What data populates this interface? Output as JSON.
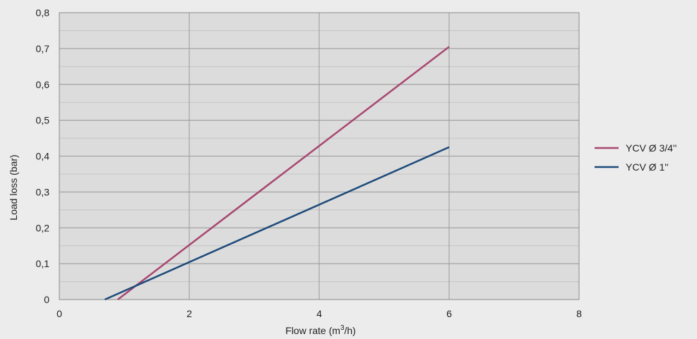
{
  "chart_data": {
    "type": "line",
    "xlabel": "Flow rate (m",
    "xlabel_sup": "3",
    "xlabel_tail": "/h)",
    "ylabel": "Load loss (bar)",
    "xlim": [
      0,
      8
    ],
    "ylim": [
      0,
      0.8
    ],
    "x_ticks": [
      0,
      2,
      4,
      6,
      8
    ],
    "x_tick_labels": [
      "0",
      "2",
      "4",
      "6",
      "8"
    ],
    "y_ticks": [
      0,
      0.1,
      0.2,
      0.3,
      0.4,
      0.5,
      0.6,
      0.7,
      0.8
    ],
    "y_tick_labels": [
      "0",
      "0,1",
      "0,2",
      "0,3",
      "0,4",
      "0,5",
      "0,6",
      "0,7",
      "0,8"
    ],
    "y_minor_step": 0.05,
    "grid": true,
    "legend_position": "right",
    "series": [
      {
        "name": "YCV Ø 3/4''",
        "color": "#a8466f",
        "x": [
          0.9,
          6
        ],
        "y": [
          0,
          0.705
        ]
      },
      {
        "name": "YCV Ø 1''",
        "color": "#1c4a7a",
        "x": [
          0.7,
          6
        ],
        "y": [
          0,
          0.425
        ]
      }
    ]
  },
  "colors": {
    "plot_background": "#dcdcdc",
    "major_grid": "#9a9a9a",
    "minor_grid": "#c4c4c4",
    "border": "#8a8a8a"
  }
}
